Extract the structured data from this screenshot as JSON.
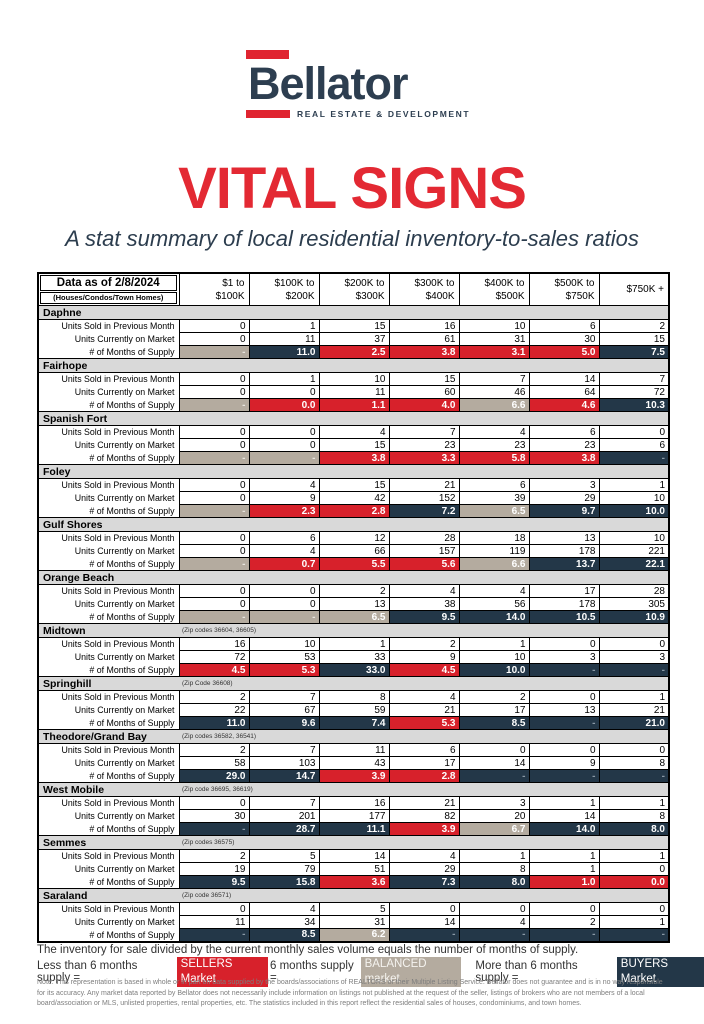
{
  "logo": {
    "brand": "Bellator",
    "tagline": "REAL ESTATE & DEVELOPMENT"
  },
  "title": "VITAL SIGNS",
  "subtitle": "A stat summary of local residential inventory-to-sales ratios",
  "colors": {
    "sellers_red": "#d7212b",
    "buyers_navy": "#233748",
    "balanced_tan": "#b4ab9f",
    "band_gray": "#d9d9d9",
    "title_red": "#e32933",
    "logo_navy": "#2d3e50"
  },
  "table": {
    "corner_line1": "Data as of 2/8/2024",
    "corner_line2": "(Houses/Condos/Town Homes)",
    "columns": [
      {
        "line1": "$1 to",
        "line2": "$100K"
      },
      {
        "line1": "$100K to",
        "line2": "$200K"
      },
      {
        "line1": "$200K to",
        "line2": "$300K"
      },
      {
        "line1": "$300K to",
        "line2": "$400K"
      },
      {
        "line1": "$400K to",
        "line2": "$500K"
      },
      {
        "line1": "$500K to",
        "line2": "$750K"
      },
      {
        "line1": "$750K +",
        "line2": ""
      }
    ],
    "row_labels": {
      "sold": "Units Sold in Previous Month",
      "on_market": "Units Currently on Market",
      "supply": "# of Months of Supply"
    },
    "regions": [
      {
        "name": "Daphne",
        "zip": "",
        "sold": [
          "0",
          "1",
          "15",
          "16",
          "10",
          "6",
          "2"
        ],
        "on_market": [
          "0",
          "11",
          "37",
          "61",
          "31",
          "30",
          "15"
        ],
        "supply": [
          {
            "value": "-",
            "market": "balanced"
          },
          {
            "value": "11.0",
            "market": "buyers"
          },
          {
            "value": "2.5",
            "market": "sellers"
          },
          {
            "value": "3.8",
            "market": "sellers"
          },
          {
            "value": "3.1",
            "market": "sellers"
          },
          {
            "value": "5.0",
            "market": "sellers"
          },
          {
            "value": "7.5",
            "market": "buyers"
          }
        ]
      },
      {
        "name": "Fairhope",
        "zip": "",
        "sold": [
          "0",
          "1",
          "10",
          "15",
          "7",
          "14",
          "7"
        ],
        "on_market": [
          "0",
          "0",
          "11",
          "60",
          "46",
          "64",
          "72"
        ],
        "supply": [
          {
            "value": "-",
            "market": "balanced"
          },
          {
            "value": "0.0",
            "market": "sellers"
          },
          {
            "value": "1.1",
            "market": "sellers"
          },
          {
            "value": "4.0",
            "market": "sellers"
          },
          {
            "value": "6.6",
            "market": "balanced"
          },
          {
            "value": "4.6",
            "market": "sellers"
          },
          {
            "value": "10.3",
            "market": "buyers"
          }
        ]
      },
      {
        "name": "Spanish Fort",
        "zip": "",
        "sold": [
          "0",
          "0",
          "4",
          "7",
          "4",
          "6",
          "0"
        ],
        "on_market": [
          "0",
          "0",
          "15",
          "23",
          "23",
          "23",
          "6"
        ],
        "supply": [
          {
            "value": "-",
            "market": "balanced"
          },
          {
            "value": "-",
            "market": "balanced"
          },
          {
            "value": "3.8",
            "market": "sellers"
          },
          {
            "value": "3.3",
            "market": "sellers"
          },
          {
            "value": "5.8",
            "market": "sellers"
          },
          {
            "value": "3.8",
            "market": "sellers"
          },
          {
            "value": "-",
            "market": "buyers"
          }
        ]
      },
      {
        "name": "Foley",
        "zip": "",
        "sold": [
          "0",
          "4",
          "15",
          "21",
          "6",
          "3",
          "1"
        ],
        "on_market": [
          "0",
          "9",
          "42",
          "152",
          "39",
          "29",
          "10"
        ],
        "supply": [
          {
            "value": "-",
            "market": "balanced"
          },
          {
            "value": "2.3",
            "market": "sellers"
          },
          {
            "value": "2.8",
            "market": "sellers"
          },
          {
            "value": "7.2",
            "market": "buyers"
          },
          {
            "value": "6.5",
            "market": "balanced"
          },
          {
            "value": "9.7",
            "market": "buyers"
          },
          {
            "value": "10.0",
            "market": "buyers"
          }
        ]
      },
      {
        "name": "Gulf Shores",
        "zip": "",
        "sold": [
          "0",
          "6",
          "12",
          "28",
          "18",
          "13",
          "10"
        ],
        "on_market": [
          "0",
          "4",
          "66",
          "157",
          "119",
          "178",
          "221"
        ],
        "supply": [
          {
            "value": "-",
            "market": "balanced"
          },
          {
            "value": "0.7",
            "market": "sellers"
          },
          {
            "value": "5.5",
            "market": "sellers"
          },
          {
            "value": "5.6",
            "market": "sellers"
          },
          {
            "value": "6.6",
            "market": "balanced"
          },
          {
            "value": "13.7",
            "market": "buyers"
          },
          {
            "value": "22.1",
            "market": "buyers"
          }
        ]
      },
      {
        "name": "Orange Beach",
        "zip": "",
        "sold": [
          "0",
          "0",
          "2",
          "4",
          "4",
          "17",
          "28"
        ],
        "on_market": [
          "0",
          "0",
          "13",
          "38",
          "56",
          "178",
          "305"
        ],
        "supply": [
          {
            "value": "-",
            "market": "balanced"
          },
          {
            "value": "-",
            "market": "balanced"
          },
          {
            "value": "6.5",
            "market": "balanced"
          },
          {
            "value": "9.5",
            "market": "buyers"
          },
          {
            "value": "14.0",
            "market": "buyers"
          },
          {
            "value": "10.5",
            "market": "buyers"
          },
          {
            "value": "10.9",
            "market": "buyers"
          }
        ]
      },
      {
        "name": "Midtown",
        "zip": "(Zip codes 36604, 36605)",
        "sold": [
          "16",
          "10",
          "1",
          "2",
          "1",
          "0",
          "0"
        ],
        "on_market": [
          "72",
          "53",
          "33",
          "9",
          "10",
          "3",
          "3"
        ],
        "supply": [
          {
            "value": "4.5",
            "market": "sellers"
          },
          {
            "value": "5.3",
            "market": "sellers"
          },
          {
            "value": "33.0",
            "market": "buyers"
          },
          {
            "value": "4.5",
            "market": "sellers"
          },
          {
            "value": "10.0",
            "market": "buyers"
          },
          {
            "value": "-",
            "market": "buyers"
          },
          {
            "value": "-",
            "market": "buyers"
          }
        ]
      },
      {
        "name": "Springhill",
        "zip": "(Zip Code 36608)",
        "sold": [
          "2",
          "7",
          "8",
          "4",
          "2",
          "0",
          "1"
        ],
        "on_market": [
          "22",
          "67",
          "59",
          "21",
          "17",
          "13",
          "21"
        ],
        "supply": [
          {
            "value": "11.0",
            "market": "buyers"
          },
          {
            "value": "9.6",
            "market": "buyers"
          },
          {
            "value": "7.4",
            "market": "buyers"
          },
          {
            "value": "5.3",
            "market": "sellers"
          },
          {
            "value": "8.5",
            "market": "buyers"
          },
          {
            "value": "-",
            "market": "buyers"
          },
          {
            "value": "21.0",
            "market": "buyers"
          }
        ]
      },
      {
        "name": "Theodore/Grand Bay",
        "zip": "(Zip codes 36582, 36541)",
        "sold": [
          "2",
          "7",
          "11",
          "6",
          "0",
          "0",
          "0"
        ],
        "on_market": [
          "58",
          "103",
          "43",
          "17",
          "14",
          "9",
          "8"
        ],
        "supply": [
          {
            "value": "29.0",
            "market": "buyers"
          },
          {
            "value": "14.7",
            "market": "buyers"
          },
          {
            "value": "3.9",
            "market": "sellers"
          },
          {
            "value": "2.8",
            "market": "sellers"
          },
          {
            "value": "-",
            "market": "buyers"
          },
          {
            "value": "-",
            "market": "buyers"
          },
          {
            "value": "-",
            "market": "buyers"
          }
        ]
      },
      {
        "name": "West Mobile",
        "zip": "(Zip code 36695, 36619)",
        "sold": [
          "0",
          "7",
          "16",
          "21",
          "3",
          "1",
          "1"
        ],
        "on_market": [
          "30",
          "201",
          "177",
          "82",
          "20",
          "14",
          "8"
        ],
        "supply": [
          {
            "value": "-",
            "market": "buyers"
          },
          {
            "value": "28.7",
            "market": "buyers"
          },
          {
            "value": "11.1",
            "market": "buyers"
          },
          {
            "value": "3.9",
            "market": "sellers"
          },
          {
            "value": "6.7",
            "market": "balanced"
          },
          {
            "value": "14.0",
            "market": "buyers"
          },
          {
            "value": "8.0",
            "market": "buyers"
          }
        ]
      },
      {
        "name": "Semmes",
        "zip": "(Zip codes 36575)",
        "sold": [
          "2",
          "5",
          "14",
          "4",
          "1",
          "1",
          "1"
        ],
        "on_market": [
          "19",
          "79",
          "51",
          "29",
          "8",
          "1",
          "0"
        ],
        "supply": [
          {
            "value": "9.5",
            "market": "buyers"
          },
          {
            "value": "15.8",
            "market": "buyers"
          },
          {
            "value": "3.6",
            "market": "sellers"
          },
          {
            "value": "7.3",
            "market": "buyers"
          },
          {
            "value": "8.0",
            "market": "buyers"
          },
          {
            "value": "1.0",
            "market": "sellers"
          },
          {
            "value": "0.0",
            "market": "sellers"
          }
        ]
      },
      {
        "name": "Saraland",
        "zip": "(Zip code 36571)",
        "sold": [
          "0",
          "4",
          "5",
          "0",
          "0",
          "0",
          "0"
        ],
        "on_market": [
          "11",
          "34",
          "31",
          "14",
          "4",
          "2",
          "1"
        ],
        "supply": [
          {
            "value": "-",
            "market": "buyers"
          },
          {
            "value": "8.5",
            "market": "buyers"
          },
          {
            "value": "6.2",
            "market": "balanced"
          },
          {
            "value": "-",
            "market": "buyers"
          },
          {
            "value": "-",
            "market": "buyers"
          },
          {
            "value": "-",
            "market": "buyers"
          },
          {
            "value": "-",
            "market": "buyers"
          }
        ]
      }
    ]
  },
  "legend": {
    "intro": "The inventory for sale divided by the current monthly sales volume equals the number of months of supply.",
    "less_label": "Less than 6 months supply =",
    "sellers_chip": "SELLERS Market",
    "six_label": "6 months supply =",
    "balanced_chip": "BALANCED market",
    "more_label": "More than 6 months supply =",
    "buyers_chip": "BUYERS Market"
  },
  "note": "Note: This representation is based in whole or in part on data supplied by the boards/associations of REALTORS or their Multiple Listing Service. Bellator does not guarantee and is in no way responsible for its accuracy. Any market data reported by Bellator does not necessarily include information on listings not published at the request of the seller, listings of brokers who are not members of a local board/association or MLS, unlisted properties, rental properties, etc. The statistics included in this report reflect the residential sales of houses, condominiums, and town homes."
}
